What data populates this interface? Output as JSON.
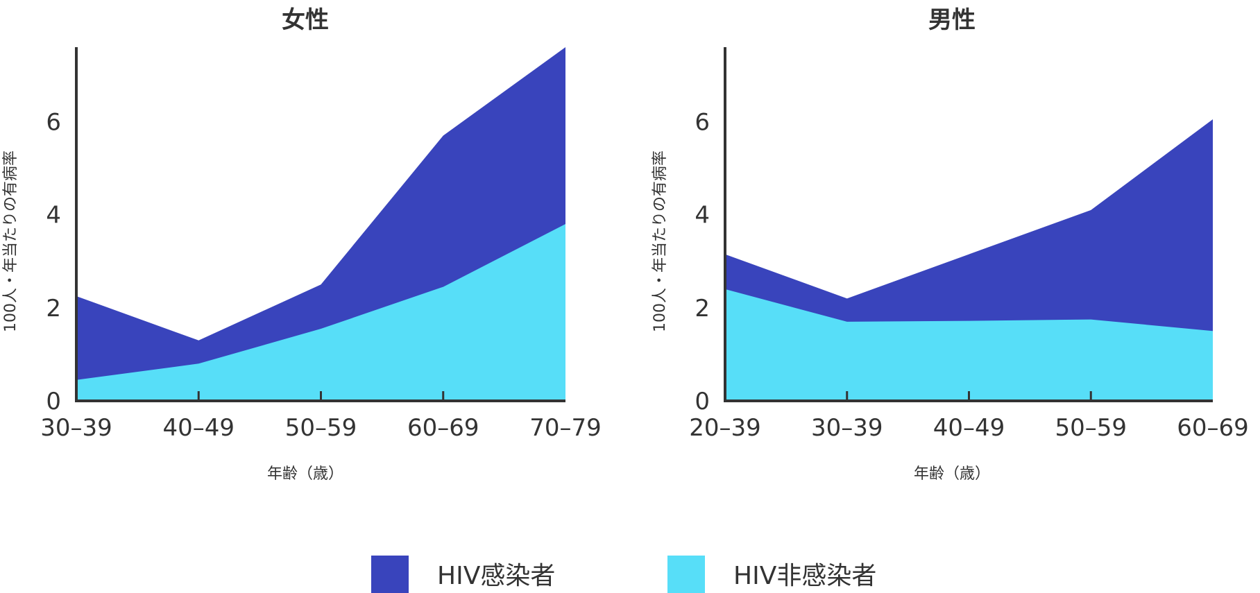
{
  "chart_data": [
    {
      "type": "area",
      "title": "女性",
      "xlabel": "年齢（歳）",
      "ylabel": "100人・年当たりの有病率",
      "categories": [
        "30–39",
        "40–49",
        "50–59",
        "60–69",
        "70–79"
      ],
      "ylim": [
        0,
        7.6
      ],
      "yticks": [
        0,
        2,
        4,
        6
      ],
      "series": [
        {
          "name": "HIV感染者",
          "values": [
            2.25,
            1.3,
            2.5,
            5.7,
            7.6
          ]
        },
        {
          "name": "HIV非感染者",
          "values": [
            0.45,
            0.8,
            1.55,
            2.45,
            3.8
          ]
        }
      ]
    },
    {
      "type": "area",
      "title": "男性",
      "xlabel": "年齢（歳）",
      "ylabel": "100人・年当たりの有病率",
      "categories": [
        "20–39",
        "30–39",
        "40–49",
        "50–59",
        "60–69"
      ],
      "ylim": [
        0,
        7.6
      ],
      "yticks": [
        0,
        2,
        4,
        6
      ],
      "series": [
        {
          "name": "HIV感染者",
          "values": [
            3.15,
            2.2,
            3.15,
            4.1,
            6.05
          ]
        },
        {
          "name": "HIV非感染者",
          "values": [
            2.4,
            1.7,
            1.72,
            1.75,
            1.5
          ]
        }
      ]
    }
  ],
  "legend": {
    "placement": "bottom-center",
    "items": [
      {
        "label": "HIV感染者",
        "color": "#3944bc"
      },
      {
        "label": "HIV非感染者",
        "color": "#57def8"
      }
    ]
  },
  "colors": {
    "infected": "#3944bc",
    "uninfected": "#57def8",
    "axis": "#333333"
  }
}
